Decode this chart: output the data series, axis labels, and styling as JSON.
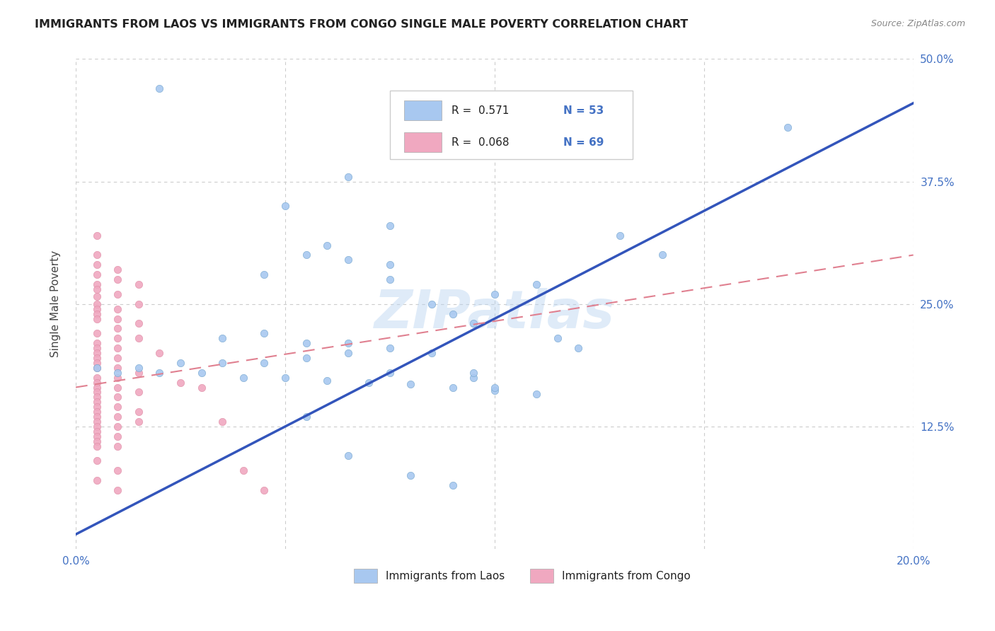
{
  "title": "IMMIGRANTS FROM LAOS VS IMMIGRANTS FROM CONGO SINGLE MALE POVERTY CORRELATION CHART",
  "source": "Source: ZipAtlas.com",
  "ylabel": "Single Male Poverty",
  "xlim": [
    0.0,
    0.2
  ],
  "ylim": [
    0.0,
    0.5
  ],
  "xticks": [
    0.0,
    0.05,
    0.1,
    0.15,
    0.2
  ],
  "xticklabels": [
    "0.0%",
    "",
    "",
    "",
    "20.0%"
  ],
  "yticks": [
    0.0,
    0.125,
    0.25,
    0.375,
    0.5
  ],
  "yticklabels": [
    "",
    "12.5%",
    "25.0%",
    "37.5%",
    "50.0%"
  ],
  "laos_color": "#a8c8f0",
  "congo_color": "#f0a8c0",
  "laos_line_color": "#3355bb",
  "congo_line_color": "#e08090",
  "grid_color": "#cccccc",
  "watermark": "ZIPatlas",
  "legend_R_laos": "R =  0.571",
  "legend_N_laos": "N = 53",
  "legend_R_congo": "R =  0.068",
  "legend_N_congo": "N = 69",
  "laos_line": {
    "x0": 0.0,
    "y0": 0.015,
    "x1": 0.2,
    "y1": 0.455
  },
  "congo_line": {
    "x0": 0.0,
    "y0": 0.165,
    "x1": 0.2,
    "y1": 0.3
  },
  "laos_scatter": [
    [
      0.02,
      0.47
    ],
    [
      0.085,
      0.41
    ],
    [
      0.065,
      0.38
    ],
    [
      0.05,
      0.35
    ],
    [
      0.075,
      0.33
    ],
    [
      0.06,
      0.31
    ],
    [
      0.075,
      0.29
    ],
    [
      0.055,
      0.3
    ],
    [
      0.045,
      0.28
    ],
    [
      0.17,
      0.43
    ],
    [
      0.13,
      0.32
    ],
    [
      0.14,
      0.3
    ],
    [
      0.11,
      0.27
    ],
    [
      0.1,
      0.26
    ],
    [
      0.085,
      0.25
    ],
    [
      0.065,
      0.295
    ],
    [
      0.09,
      0.24
    ],
    [
      0.095,
      0.23
    ],
    [
      0.075,
      0.275
    ],
    [
      0.055,
      0.21
    ],
    [
      0.045,
      0.22
    ],
    [
      0.035,
      0.215
    ],
    [
      0.115,
      0.215
    ],
    [
      0.12,
      0.205
    ],
    [
      0.065,
      0.21
    ],
    [
      0.075,
      0.205
    ],
    [
      0.085,
      0.2
    ],
    [
      0.065,
      0.2
    ],
    [
      0.055,
      0.195
    ],
    [
      0.045,
      0.19
    ],
    [
      0.035,
      0.19
    ],
    [
      0.025,
      0.19
    ],
    [
      0.015,
      0.185
    ],
    [
      0.005,
      0.185
    ],
    [
      0.01,
      0.18
    ],
    [
      0.02,
      0.18
    ],
    [
      0.03,
      0.18
    ],
    [
      0.04,
      0.175
    ],
    [
      0.05,
      0.175
    ],
    [
      0.06,
      0.172
    ],
    [
      0.07,
      0.17
    ],
    [
      0.08,
      0.168
    ],
    [
      0.09,
      0.165
    ],
    [
      0.1,
      0.162
    ],
    [
      0.11,
      0.158
    ],
    [
      0.1,
      0.165
    ],
    [
      0.055,
      0.135
    ],
    [
      0.065,
      0.095
    ],
    [
      0.08,
      0.075
    ],
    [
      0.075,
      0.18
    ],
    [
      0.095,
      0.175
    ],
    [
      0.095,
      0.18
    ],
    [
      0.09,
      0.065
    ]
  ],
  "congo_scatter": [
    [
      0.005,
      0.32
    ],
    [
      0.005,
      0.3
    ],
    [
      0.005,
      0.29
    ],
    [
      0.005,
      0.28
    ],
    [
      0.005,
      0.27
    ],
    [
      0.005,
      0.265
    ],
    [
      0.005,
      0.258
    ],
    [
      0.005,
      0.25
    ],
    [
      0.005,
      0.245
    ],
    [
      0.005,
      0.24
    ],
    [
      0.005,
      0.235
    ],
    [
      0.005,
      0.22
    ],
    [
      0.005,
      0.21
    ],
    [
      0.005,
      0.205
    ],
    [
      0.005,
      0.2
    ],
    [
      0.005,
      0.195
    ],
    [
      0.005,
      0.19
    ],
    [
      0.005,
      0.185
    ],
    [
      0.005,
      0.175
    ],
    [
      0.005,
      0.17
    ],
    [
      0.005,
      0.165
    ],
    [
      0.005,
      0.16
    ],
    [
      0.005,
      0.155
    ],
    [
      0.005,
      0.15
    ],
    [
      0.005,
      0.145
    ],
    [
      0.005,
      0.14
    ],
    [
      0.005,
      0.135
    ],
    [
      0.005,
      0.13
    ],
    [
      0.005,
      0.125
    ],
    [
      0.005,
      0.12
    ],
    [
      0.005,
      0.115
    ],
    [
      0.005,
      0.11
    ],
    [
      0.005,
      0.105
    ],
    [
      0.005,
      0.09
    ],
    [
      0.005,
      0.07
    ],
    [
      0.01,
      0.285
    ],
    [
      0.01,
      0.275
    ],
    [
      0.01,
      0.26
    ],
    [
      0.01,
      0.245
    ],
    [
      0.01,
      0.235
    ],
    [
      0.01,
      0.225
    ],
    [
      0.01,
      0.215
    ],
    [
      0.01,
      0.205
    ],
    [
      0.01,
      0.195
    ],
    [
      0.01,
      0.185
    ],
    [
      0.01,
      0.175
    ],
    [
      0.01,
      0.165
    ],
    [
      0.01,
      0.155
    ],
    [
      0.01,
      0.145
    ],
    [
      0.01,
      0.135
    ],
    [
      0.01,
      0.125
    ],
    [
      0.01,
      0.115
    ],
    [
      0.01,
      0.105
    ],
    [
      0.01,
      0.08
    ],
    [
      0.01,
      0.06
    ],
    [
      0.015,
      0.27
    ],
    [
      0.015,
      0.25
    ],
    [
      0.015,
      0.23
    ],
    [
      0.015,
      0.215
    ],
    [
      0.015,
      0.18
    ],
    [
      0.015,
      0.16
    ],
    [
      0.015,
      0.14
    ],
    [
      0.015,
      0.13
    ],
    [
      0.02,
      0.2
    ],
    [
      0.025,
      0.17
    ],
    [
      0.03,
      0.165
    ],
    [
      0.035,
      0.13
    ],
    [
      0.04,
      0.08
    ],
    [
      0.045,
      0.06
    ]
  ]
}
